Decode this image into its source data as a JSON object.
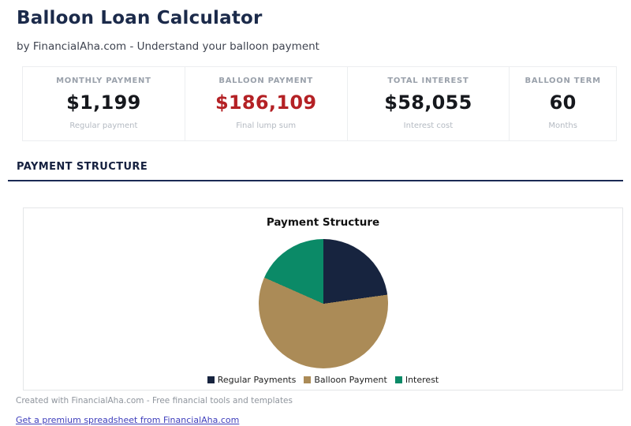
{
  "page": {
    "title": "Balloon Loan Calculator",
    "subtitle": "by FinancialAha.com - Understand your balloon payment",
    "accent_color": "#1b2a55",
    "title_color": "#1b2a4a"
  },
  "stats": {
    "cards": [
      {
        "label": "MONTHLY PAYMENT",
        "value": "$1,199",
        "sublabel": "Regular payment",
        "value_color": "#16181d"
      },
      {
        "label": "BALLOON PAYMENT",
        "value": "$186,109",
        "sublabel": "Final lump sum",
        "value_color": "#b42125"
      },
      {
        "label": "TOTAL INTEREST",
        "value": "$58,055",
        "sublabel": "Interest cost",
        "value_color": "#16181d"
      },
      {
        "label": "BALLOON TERM",
        "value": "60",
        "sublabel": "Months",
        "value_color": "#16181d"
      }
    ]
  },
  "section": {
    "heading": "PAYMENT STRUCTURE"
  },
  "chart_data": {
    "type": "pie",
    "title": "Payment Structure",
    "start_angle_deg": 0,
    "legend_position": "bottom",
    "series": [
      {
        "name": "Regular Payments",
        "value": 71940,
        "percent": 22.8,
        "color": "#17243f"
      },
      {
        "name": "Balloon Payment",
        "value": 186109,
        "percent": 58.9,
        "color": "#ab8b57"
      },
      {
        "name": "Interest",
        "value": 58055,
        "percent": 18.4,
        "color": "#0b8a67"
      }
    ]
  },
  "footer": {
    "credit": "Created with FinancialAha.com - Free financial tools and templates",
    "link_label": "Get a premium spreadsheet from FinancialAha.com",
    "link_color": "#3e3ebc"
  }
}
